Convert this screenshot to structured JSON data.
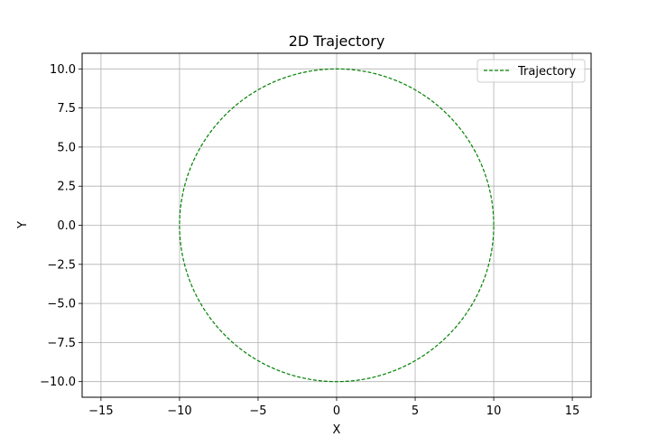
{
  "chart_data": {
    "type": "line",
    "title": "2D Trajectory",
    "xlabel": "X",
    "ylabel": "Y",
    "xlim": [
      -16.2,
      16.2
    ],
    "ylim": [
      -11.0,
      11.0
    ],
    "xticks": [
      -15,
      -10,
      -5,
      0,
      5,
      10,
      15
    ],
    "yticks": [
      -10.0,
      -7.5,
      -5.0,
      -2.5,
      0.0,
      2.5,
      5.0,
      7.5,
      10.0
    ],
    "xtick_labels": [
      "−15",
      "−10",
      "−5",
      "0",
      "5",
      "10",
      "15"
    ],
    "ytick_labels": [
      "−10.0",
      "−7.5",
      "−5.0",
      "−2.5",
      "0.0",
      "2.5",
      "5.0",
      "7.5",
      "10.0"
    ],
    "grid": true,
    "legend_position": "top-right",
    "series": [
      {
        "name": "Trajectory",
        "color": "#008000",
        "line_style": "dashed",
        "shape": "circle",
        "center": [
          0,
          0
        ],
        "radius": 10,
        "x": [
          10,
          9.511,
          8.09,
          5.878,
          3.09,
          0,
          -3.09,
          -5.878,
          -8.09,
          -9.511,
          -10,
          -9.511,
          -8.09,
          -5.878,
          -3.09,
          0,
          3.09,
          5.878,
          8.09,
          9.511,
          10
        ],
        "y": [
          0,
          3.09,
          5.878,
          8.09,
          9.511,
          10,
          9.511,
          8.09,
          5.878,
          3.09,
          0,
          -3.09,
          -5.878,
          -8.09,
          -9.511,
          -10,
          -9.511,
          -8.09,
          -5.878,
          -3.09,
          0
        ]
      }
    ]
  }
}
